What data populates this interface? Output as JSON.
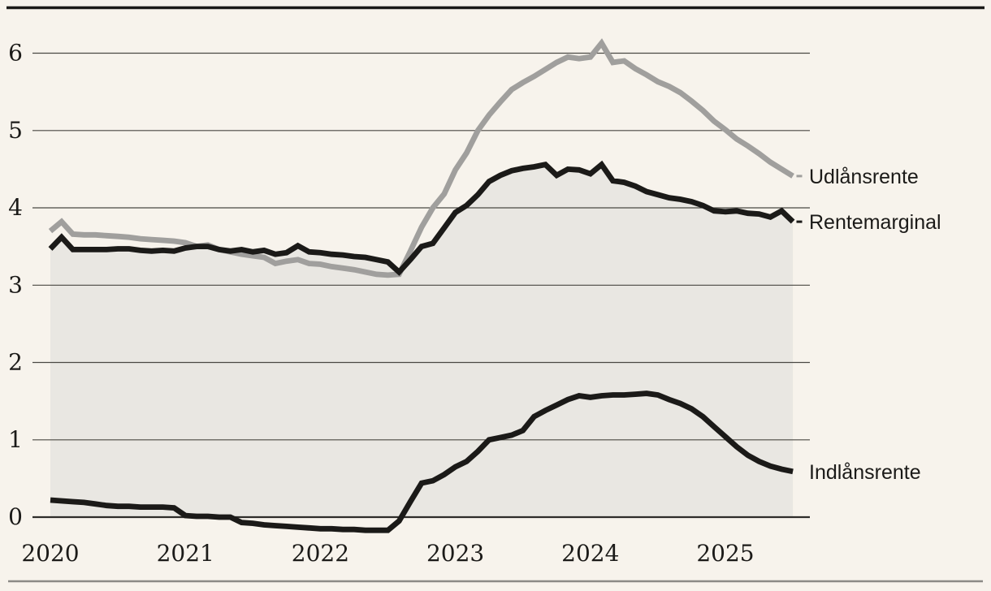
{
  "colors": {
    "background": "#f7f3ec",
    "area_fill": "#e9e7e2",
    "gray_line": "#a09f9d",
    "black_line": "#1b1a18",
    "gridline": "#4a4843",
    "zero_line": "#2e2d2a",
    "top_rule": "#1b1a18",
    "bottom_rule": "#8b8a86",
    "text": "#1b1a18"
  },
  "chart_data": {
    "type": "line",
    "title": "",
    "xlabel": "",
    "ylabel": "",
    "ylim": [
      -0.2,
      6.3
    ],
    "grid": true,
    "legend_position": "right of line ends",
    "yticks": [
      0,
      1,
      2,
      3,
      4,
      5,
      6
    ],
    "xticks": [
      "2020",
      "2021",
      "2022",
      "2023",
      "2024",
      "2025"
    ],
    "x_frequency": "monthly",
    "months": [
      "2020-01",
      "2020-02",
      "2020-03",
      "2020-04",
      "2020-05",
      "2020-06",
      "2020-07",
      "2020-08",
      "2020-09",
      "2020-10",
      "2020-11",
      "2020-12",
      "2021-01",
      "2021-02",
      "2021-03",
      "2021-04",
      "2021-05",
      "2021-06",
      "2021-07",
      "2021-08",
      "2021-09",
      "2021-10",
      "2021-11",
      "2021-12",
      "2022-01",
      "2022-02",
      "2022-03",
      "2022-04",
      "2022-05",
      "2022-06",
      "2022-07",
      "2022-08",
      "2022-09",
      "2022-10",
      "2022-11",
      "2022-12",
      "2023-01",
      "2023-02",
      "2023-03",
      "2023-04",
      "2023-05",
      "2023-06",
      "2023-07",
      "2023-08",
      "2023-09",
      "2023-10",
      "2023-11",
      "2023-12",
      "2024-01",
      "2024-02",
      "2024-03",
      "2024-04",
      "2024-05",
      "2024-06",
      "2024-07",
      "2024-08",
      "2024-09",
      "2024-10",
      "2024-11",
      "2024-12",
      "2025-01",
      "2025-02",
      "2025-03",
      "2025-04",
      "2025-05",
      "2025-06",
      "2025-07"
    ],
    "series": [
      {
        "name": "Udlånsrente",
        "color_key": "gray_line",
        "label_dash": true,
        "values": [
          3.7,
          3.82,
          3.66,
          3.65,
          3.65,
          3.64,
          3.63,
          3.62,
          3.6,
          3.59,
          3.58,
          3.57,
          3.55,
          3.5,
          3.52,
          3.46,
          3.43,
          3.4,
          3.38,
          3.36,
          3.28,
          3.31,
          3.33,
          3.28,
          3.27,
          3.24,
          3.22,
          3.2,
          3.17,
          3.14,
          3.13,
          3.14,
          3.44,
          3.75,
          4.0,
          4.18,
          4.49,
          4.71,
          5.0,
          5.2,
          5.37,
          5.53,
          5.62,
          5.7,
          5.79,
          5.88,
          5.95,
          5.93,
          5.95,
          6.13,
          5.88,
          5.9,
          5.8,
          5.72,
          5.63,
          5.57,
          5.49,
          5.38,
          5.26,
          5.12,
          5.01,
          4.89,
          4.8,
          4.7,
          4.59,
          4.5,
          4.41
        ]
      },
      {
        "name": "Rentemarginal",
        "color_key": "black_line",
        "label_dash": true,
        "area_fill_to_zero": true,
        "values": [
          3.47,
          3.62,
          3.46,
          3.46,
          3.46,
          3.46,
          3.47,
          3.47,
          3.45,
          3.44,
          3.45,
          3.44,
          3.48,
          3.5,
          3.5,
          3.46,
          3.44,
          3.46,
          3.43,
          3.45,
          3.4,
          3.42,
          3.51,
          3.43,
          3.42,
          3.4,
          3.39,
          3.37,
          3.36,
          3.33,
          3.3,
          3.17,
          3.33,
          3.5,
          3.54,
          3.74,
          3.94,
          4.03,
          4.17,
          4.34,
          4.42,
          4.48,
          4.51,
          4.53,
          4.56,
          4.42,
          4.5,
          4.49,
          4.44,
          4.56,
          4.35,
          4.33,
          4.28,
          4.21,
          4.17,
          4.13,
          4.11,
          4.08,
          4.03,
          3.96,
          3.95,
          3.96,
          3.93,
          3.92,
          3.88,
          3.96,
          3.82
        ]
      },
      {
        "name": "Indlånsrente",
        "color_key": "black_line",
        "label_dash": false,
        "values": [
          0.22,
          0.21,
          0.2,
          0.19,
          0.17,
          0.15,
          0.14,
          0.14,
          0.13,
          0.13,
          0.13,
          0.12,
          0.02,
          0.01,
          0.01,
          0.0,
          0.0,
          -0.07,
          -0.08,
          -0.1,
          -0.11,
          -0.12,
          -0.13,
          -0.14,
          -0.15,
          -0.15,
          -0.16,
          -0.16,
          -0.17,
          -0.17,
          -0.17,
          -0.05,
          0.2,
          0.44,
          0.47,
          0.55,
          0.65,
          0.72,
          0.85,
          1.0,
          1.03,
          1.06,
          1.12,
          1.3,
          1.38,
          1.45,
          1.52,
          1.57,
          1.55,
          1.57,
          1.58,
          1.58,
          1.59,
          1.6,
          1.58,
          1.52,
          1.47,
          1.4,
          1.3,
          1.17,
          1.04,
          0.91,
          0.8,
          0.72,
          0.66,
          0.62,
          0.59
        ]
      }
    ]
  }
}
